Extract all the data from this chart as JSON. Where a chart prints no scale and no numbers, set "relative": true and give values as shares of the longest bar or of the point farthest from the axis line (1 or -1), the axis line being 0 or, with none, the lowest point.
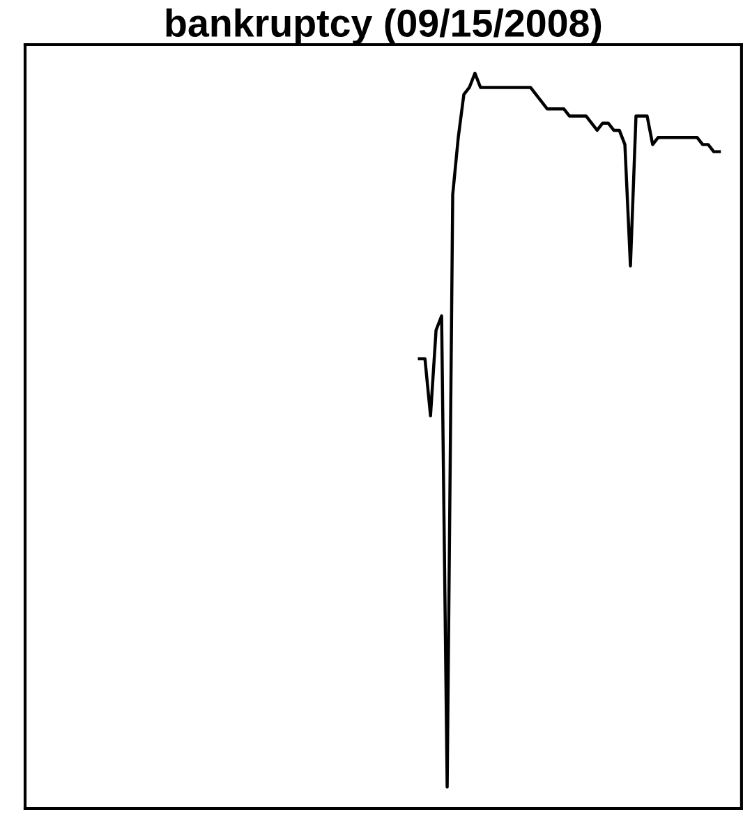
{
  "chart_data": {
    "type": "line",
    "title": "bankruptcy (09/15/2008)",
    "relative": true,
    "categories": [
      null,
      null,
      null,
      null,
      null,
      null,
      null,
      null,
      null,
      null,
      null,
      null,
      null,
      null,
      null,
      null,
      null,
      null,
      null,
      null,
      null,
      null,
      null,
      null,
      null,
      null,
      null,
      null,
      null,
      null,
      null,
      null,
      null,
      null,
      null,
      null,
      null,
      null,
      null,
      null,
      null,
      null,
      null,
      null,
      null,
      null,
      null,
      null,
      null,
      null,
      null,
      null,
      null,
      null,
      null,
      null,
      null,
      null,
      null,
      null,
      null,
      null,
      null,
      null,
      null,
      null,
      null,
      null,
      null,
      null,
      null,
      null,
      null,
      null,
      null,
      null,
      null,
      null,
      null,
      null,
      null,
      null,
      null,
      null,
      null,
      null,
      null,
      null,
      null,
      null,
      null,
      null,
      null,
      null,
      null,
      null,
      null,
      null,
      null,
      null,
      null,
      null,
      null,
      null,
      null,
      null,
      null,
      null,
      null,
      null,
      null,
      null,
      null,
      null,
      null,
      null,
      null,
      null,
      null,
      null,
      null,
      null,
      null,
      null,
      null,
      null,
      null,
      null,
      null,
      null
    ],
    "series": [
      {
        "color": "#000000",
        "values": [
          null,
          null,
          null,
          null,
          null,
          null,
          null,
          null,
          null,
          null,
          null,
          null,
          null,
          null,
          null,
          null,
          null,
          null,
          null,
          null,
          null,
          null,
          null,
          null,
          null,
          null,
          null,
          null,
          null,
          null,
          null,
          null,
          null,
          null,
          null,
          null,
          null,
          null,
          null,
          null,
          null,
          null,
          null,
          null,
          null,
          null,
          null,
          null,
          null,
          null,
          null,
          null,
          null,
          null,
          null,
          null,
          null,
          null,
          null,
          null,
          null,
          null,
          null,
          null,
          null,
          null,
          null,
          null,
          null,
          null,
          null,
          0.6,
          0.6,
          0.52,
          0.64,
          0.66,
          0,
          0.83,
          0.91,
          0.97,
          0.98,
          1,
          0.98,
          0.98,
          0.98,
          0.98,
          0.98,
          0.98,
          0.98,
          0.98,
          0.98,
          0.98,
          0.97,
          0.96,
          0.95,
          0.95,
          0.95,
          0.95,
          0.94,
          0.94,
          0.94,
          0.94,
          0.93,
          0.92,
          0.93,
          0.93,
          0.92,
          0.92,
          0.9,
          0.73,
          0.94,
          0.94,
          0.94,
          0.9,
          0.91,
          0.91,
          0.91,
          0.91,
          0.91,
          0.91,
          0.91,
          0.91,
          0.9,
          0.9,
          0.89,
          0.89,
          null,
          null,
          null,
          null
        ]
      }
    ],
    "grid": false,
    "legend": false,
    "line_style": "solid",
    "marker": "none"
  }
}
